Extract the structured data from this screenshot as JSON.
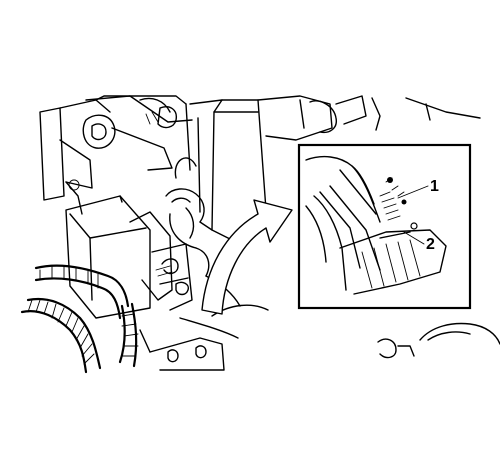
{
  "figure": {
    "callouts": [
      {
        "number": "1"
      },
      {
        "number": "2"
      }
    ]
  }
}
